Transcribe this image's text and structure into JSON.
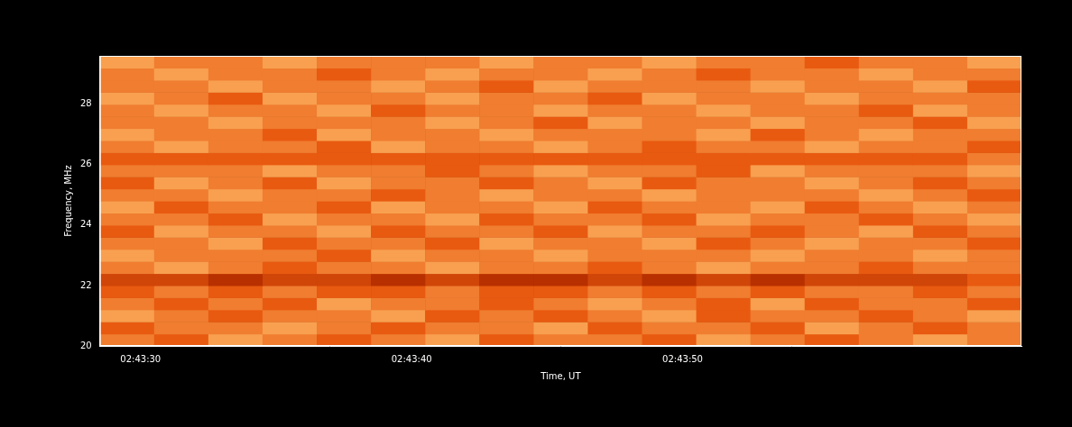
{
  "chart_data": {
    "type": "heatmap",
    "x_label": "Time, UT",
    "y_label": "Frequency, MHz",
    "xlim": [
      28.5,
      62.5
    ],
    "ylim": [
      20,
      29.6
    ],
    "xticks": [
      {
        "value": 30,
        "label": "02:43:30"
      },
      {
        "value": 40,
        "label": "02:43:40"
      },
      {
        "value": 50,
        "label": "02:43:50"
      }
    ],
    "yticks": [
      20,
      22,
      24,
      26,
      28
    ],
    "grid": false,
    "zlim": [
      0,
      10
    ],
    "x_bins": [
      28.5,
      30.5,
      32.5,
      34.5,
      36.5,
      38.5,
      40.5,
      42.5,
      44.5,
      46.5,
      48.5,
      50.5,
      52.5,
      54.5,
      56.5,
      58.5,
      60.5,
      62.5
    ],
    "y_bins": [
      20.0,
      20.4,
      20.8,
      21.2,
      21.6,
      22.0,
      22.4,
      22.8,
      23.2,
      23.6,
      24.0,
      24.4,
      24.8,
      25.2,
      25.6,
      26.0,
      26.4,
      26.8,
      27.2,
      27.6,
      28.0,
      28.4,
      28.8,
      29.2,
      29.6
    ],
    "cells": [
      [
        6,
        5,
        7,
        6,
        5,
        6,
        7,
        5,
        6,
        6,
        5,
        7,
        6,
        5,
        6,
        7,
        6
      ],
      [
        5,
        6,
        6,
        7,
        6,
        5,
        6,
        6,
        7,
        5,
        6,
        6,
        5,
        7,
        6,
        5,
        6
      ],
      [
        7,
        6,
        5,
        6,
        6,
        7,
        5,
        6,
        5,
        6,
        7,
        5,
        6,
        6,
        5,
        6,
        7
      ],
      [
        6,
        5,
        6,
        5,
        7,
        6,
        6,
        5,
        6,
        7,
        6,
        5,
        7,
        5,
        6,
        6,
        5
      ],
      [
        5,
        6,
        5,
        6,
        5,
        5,
        6,
        5,
        5,
        6,
        5,
        6,
        5,
        6,
        6,
        5,
        6
      ],
      [
        4,
        4,
        3,
        4,
        4,
        3,
        4,
        3,
        3,
        4,
        3,
        4,
        3,
        4,
        4,
        4,
        5
      ],
      [
        6,
        7,
        6,
        5,
        6,
        6,
        7,
        6,
        6,
        5,
        6,
        7,
        6,
        6,
        5,
        6,
        6
      ],
      [
        7,
        6,
        6,
        6,
        5,
        7,
        6,
        6,
        7,
        6,
        6,
        6,
        7,
        6,
        6,
        7,
        6
      ],
      [
        6,
        6,
        7,
        5,
        6,
        6,
        5,
        7,
        6,
        6,
        7,
        5,
        6,
        7,
        6,
        6,
        5
      ],
      [
        5,
        7,
        6,
        6,
        7,
        5,
        6,
        6,
        5,
        7,
        6,
        6,
        5,
        6,
        7,
        5,
        6
      ],
      [
        6,
        6,
        5,
        7,
        6,
        6,
        7,
        5,
        6,
        6,
        5,
        7,
        6,
        6,
        5,
        6,
        7
      ],
      [
        7,
        5,
        6,
        6,
        5,
        7,
        6,
        6,
        7,
        5,
        6,
        6,
        7,
        5,
        6,
        7,
        6
      ],
      [
        6,
        6,
        7,
        6,
        6,
        5,
        6,
        7,
        6,
        6,
        7,
        6,
        6,
        6,
        7,
        6,
        5
      ],
      [
        5,
        7,
        6,
        5,
        7,
        6,
        6,
        5,
        6,
        7,
        5,
        6,
        6,
        7,
        6,
        5,
        6
      ],
      [
        6,
        6,
        6,
        7,
        6,
        6,
        5,
        6,
        7,
        6,
        6,
        5,
        7,
        6,
        6,
        6,
        7
      ],
      [
        5,
        5,
        5,
        5,
        5,
        5,
        5,
        5,
        5,
        5,
        5,
        5,
        5,
        5,
        5,
        5,
        6
      ],
      [
        6,
        7,
        6,
        6,
        5,
        7,
        6,
        6,
        7,
        6,
        5,
        6,
        6,
        7,
        6,
        6,
        5
      ],
      [
        7,
        6,
        6,
        5,
        7,
        6,
        6,
        7,
        6,
        6,
        6,
        7,
        5,
        6,
        7,
        6,
        6
      ],
      [
        6,
        6,
        7,
        6,
        6,
        6,
        7,
        6,
        5,
        7,
        6,
        6,
        7,
        6,
        6,
        5,
        7
      ],
      [
        6,
        7,
        6,
        6,
        7,
        5,
        6,
        6,
        7,
        6,
        6,
        7,
        6,
        6,
        5,
        7,
        6
      ],
      [
        7,
        6,
        5,
        7,
        6,
        6,
        7,
        6,
        6,
        5,
        7,
        6,
        6,
        7,
        6,
        6,
        6
      ],
      [
        6,
        6,
        7,
        6,
        6,
        7,
        6,
        5,
        7,
        6,
        6,
        6,
        7,
        6,
        6,
        7,
        5
      ],
      [
        6,
        7,
        6,
        6,
        5,
        6,
        7,
        6,
        6,
        7,
        6,
        5,
        6,
        6,
        7,
        6,
        6
      ],
      [
        7,
        6,
        6,
        7,
        6,
        6,
        6,
        7,
        6,
        6,
        7,
        6,
        6,
        5,
        6,
        6,
        7
      ]
    ]
  }
}
